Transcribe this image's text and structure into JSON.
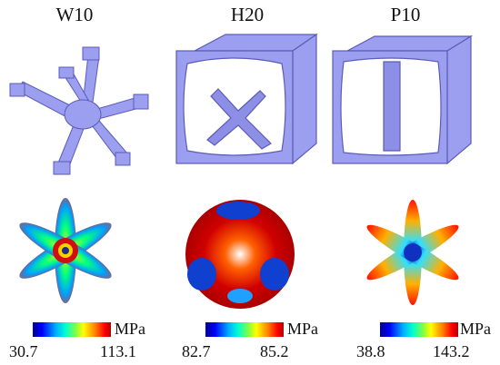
{
  "panels": [
    {
      "title": "W10",
      "unit": "MPa",
      "min": "30.7",
      "max": "113.1"
    },
    {
      "title": "H20",
      "unit": "MPa",
      "min": "82.7",
      "max": "85.2"
    },
    {
      "title": "P10",
      "unit": "MPa",
      "min": "38.8",
      "max": "143.2"
    }
  ],
  "colors": {
    "lattice": "#9c9ef0",
    "lattice_edge": "#5a5cb8"
  }
}
